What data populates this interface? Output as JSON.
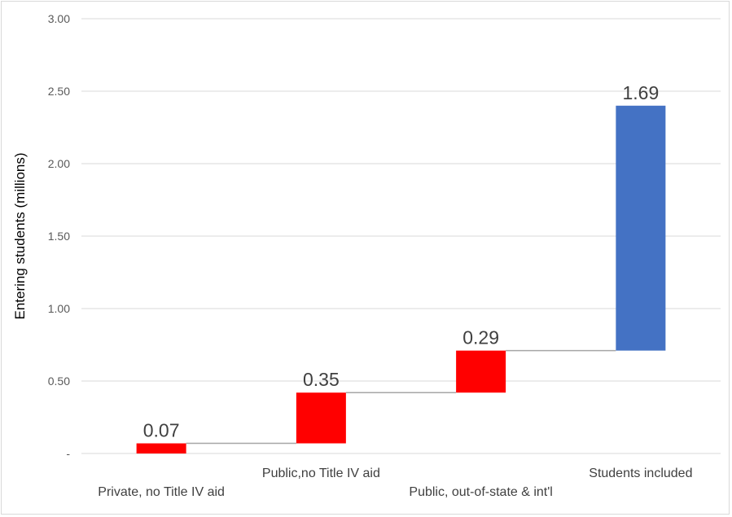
{
  "chart_data": {
    "type": "bar",
    "subtype": "waterfall",
    "title": "",
    "xlabel": "",
    "ylabel": "Entering students (millions)",
    "ylim": [
      0,
      3
    ],
    "yticks": [
      "-",
      "0.50",
      "1.00",
      "1.50",
      "2.00",
      "2.50",
      "3.00"
    ],
    "grid": true,
    "legend": "none",
    "categories": [
      "Private, no Title IV aid",
      "Public,no Title IV aid",
      "Public, out-of-state & int'l",
      "Students included"
    ],
    "bars": [
      {
        "label": "0.07",
        "start": 0.0,
        "end": 0.07,
        "color": "#ff0000"
      },
      {
        "label": "0.35",
        "start": 0.07,
        "end": 0.42,
        "color": "#ff0000"
      },
      {
        "label": "0.29",
        "start": 0.42,
        "end": 0.71,
        "color": "#ff0000"
      },
      {
        "label": "1.69",
        "start": 0.71,
        "end": 2.4,
        "color": "#4472c4"
      }
    ],
    "connector_color": "#a6a6a6",
    "grid_color": "#d9d9d9"
  }
}
